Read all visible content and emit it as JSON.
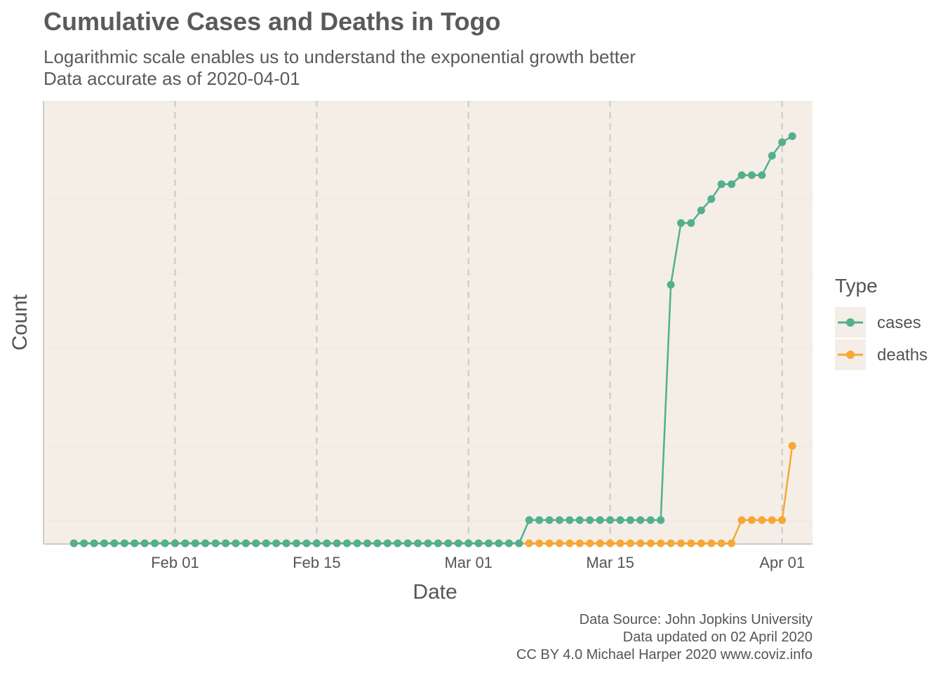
{
  "title": "Cumulative Cases and Deaths in Togo",
  "subtitle_lines": [
    "Logarithmic scale enables us to understand the exponential growth better",
    "Data accurate as of 2020-04-01"
  ],
  "caption_lines": [
    "Data Source: John Jopkins University",
    "Data updated on 02 April 2020",
    "CC BY 4.0 Michael Harper 2020 www.coviz.info"
  ],
  "colors": {
    "cases": "#52b08c",
    "deaths": "#f6a834",
    "panel": "#f4eee7",
    "vgrid": "#cfcfcf",
    "hgrid": "#ebe6df",
    "axis": "#cccccc"
  },
  "chart_data": {
    "type": "line",
    "xlabel": "Date",
    "ylabel": "Count",
    "y_scale": "log",
    "y_tick_labels_shown": false,
    "x_tick_labels": [
      "Feb 01",
      "Feb 15",
      "Mar 01",
      "Mar 15",
      "Apr 01"
    ],
    "x_ticks": [
      "2020-02-01",
      "2020-02-15",
      "2020-03-01",
      "2020-03-15",
      "2020-04-01"
    ],
    "xlim": [
      "2020-01-19",
      "2020-04-04"
    ],
    "ylim": [
      0.8,
      50
    ],
    "grid": "vertical dashed major lines at date ticks; faint horizontal lines",
    "legend": {
      "title": "Type",
      "placement": "right",
      "entries": [
        "cases",
        "deaths"
      ]
    },
    "start_date": "2020-01-22",
    "series": [
      {
        "name": "cases",
        "values": [
          0,
          0,
          0,
          0,
          0,
          0,
          0,
          0,
          0,
          0,
          0,
          0,
          0,
          0,
          0,
          0,
          0,
          0,
          0,
          0,
          0,
          0,
          0,
          0,
          0,
          0,
          0,
          0,
          0,
          0,
          0,
          0,
          0,
          0,
          0,
          0,
          0,
          0,
          0,
          0,
          0,
          0,
          0,
          0,
          0,
          1,
          1,
          1,
          1,
          1,
          1,
          1,
          1,
          1,
          1,
          1,
          1,
          1,
          1,
          9,
          16,
          16,
          18,
          20,
          23,
          23,
          25,
          25,
          25,
          30,
          34,
          36
        ]
      },
      {
        "name": "deaths",
        "values": [
          0,
          0,
          0,
          0,
          0,
          0,
          0,
          0,
          0,
          0,
          0,
          0,
          0,
          0,
          0,
          0,
          0,
          0,
          0,
          0,
          0,
          0,
          0,
          0,
          0,
          0,
          0,
          0,
          0,
          0,
          0,
          0,
          0,
          0,
          0,
          0,
          0,
          0,
          0,
          0,
          0,
          0,
          0,
          0,
          0,
          0,
          0,
          0,
          0,
          0,
          0,
          0,
          0,
          0,
          0,
          0,
          0,
          0,
          0,
          0,
          0,
          0,
          0,
          0,
          0,
          0,
          1,
          1,
          1,
          1,
          1,
          2
        ]
      }
    ]
  }
}
